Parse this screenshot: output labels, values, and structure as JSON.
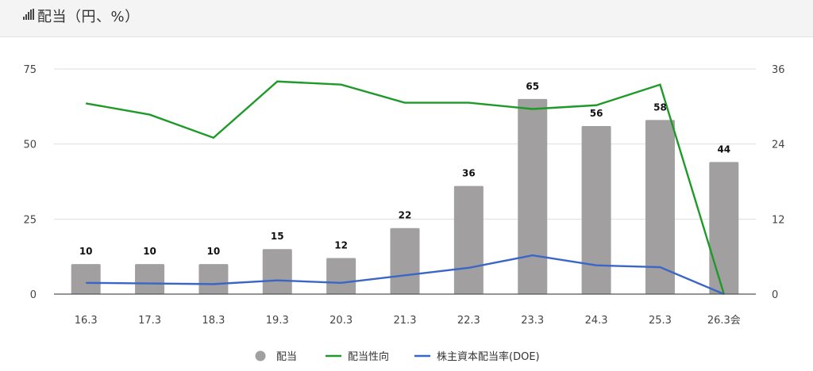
{
  "header": {
    "title": "配当（円、%）",
    "icon": "signal-bars-icon"
  },
  "chart_data": {
    "type": "bar",
    "categories": [
      "16.3",
      "17.3",
      "18.3",
      "19.3",
      "20.3",
      "21.3",
      "22.3",
      "23.3",
      "24.3",
      "25.3",
      "26.3会"
    ],
    "y_left": {
      "range": [
        0,
        75
      ],
      "ticks": [
        0,
        25,
        50,
        75
      ]
    },
    "y_right": {
      "range": [
        0,
        36
      ],
      "ticks": [
        0,
        12,
        24,
        36
      ]
    },
    "grid": true,
    "legend_position": "bottom",
    "series": [
      {
        "name": "配当",
        "kind": "bar",
        "axis": "left",
        "color": "#a19f9f",
        "values": [
          10,
          10,
          10,
          15,
          12,
          22,
          36,
          65,
          56,
          58,
          44
        ],
        "labels": [
          "10",
          "10",
          "10",
          "15",
          "12",
          "22",
          "36",
          "65",
          "56",
          "58",
          "44"
        ]
      },
      {
        "name": "配当性向",
        "kind": "line",
        "axis": "right",
        "color": "#1f9a28",
        "values": [
          30.5,
          28.7,
          25,
          34,
          33.5,
          30.6,
          30.6,
          29.6,
          30.2,
          33.5,
          0
        ]
      },
      {
        "name": "株主資本配当率(DOE)",
        "kind": "line",
        "axis": "right",
        "color": "#3a66c8",
        "values": [
          1.8,
          1.7,
          1.6,
          2.2,
          1.8,
          3.0,
          4.2,
          6.2,
          4.6,
          4.3,
          0
        ]
      }
    ]
  }
}
